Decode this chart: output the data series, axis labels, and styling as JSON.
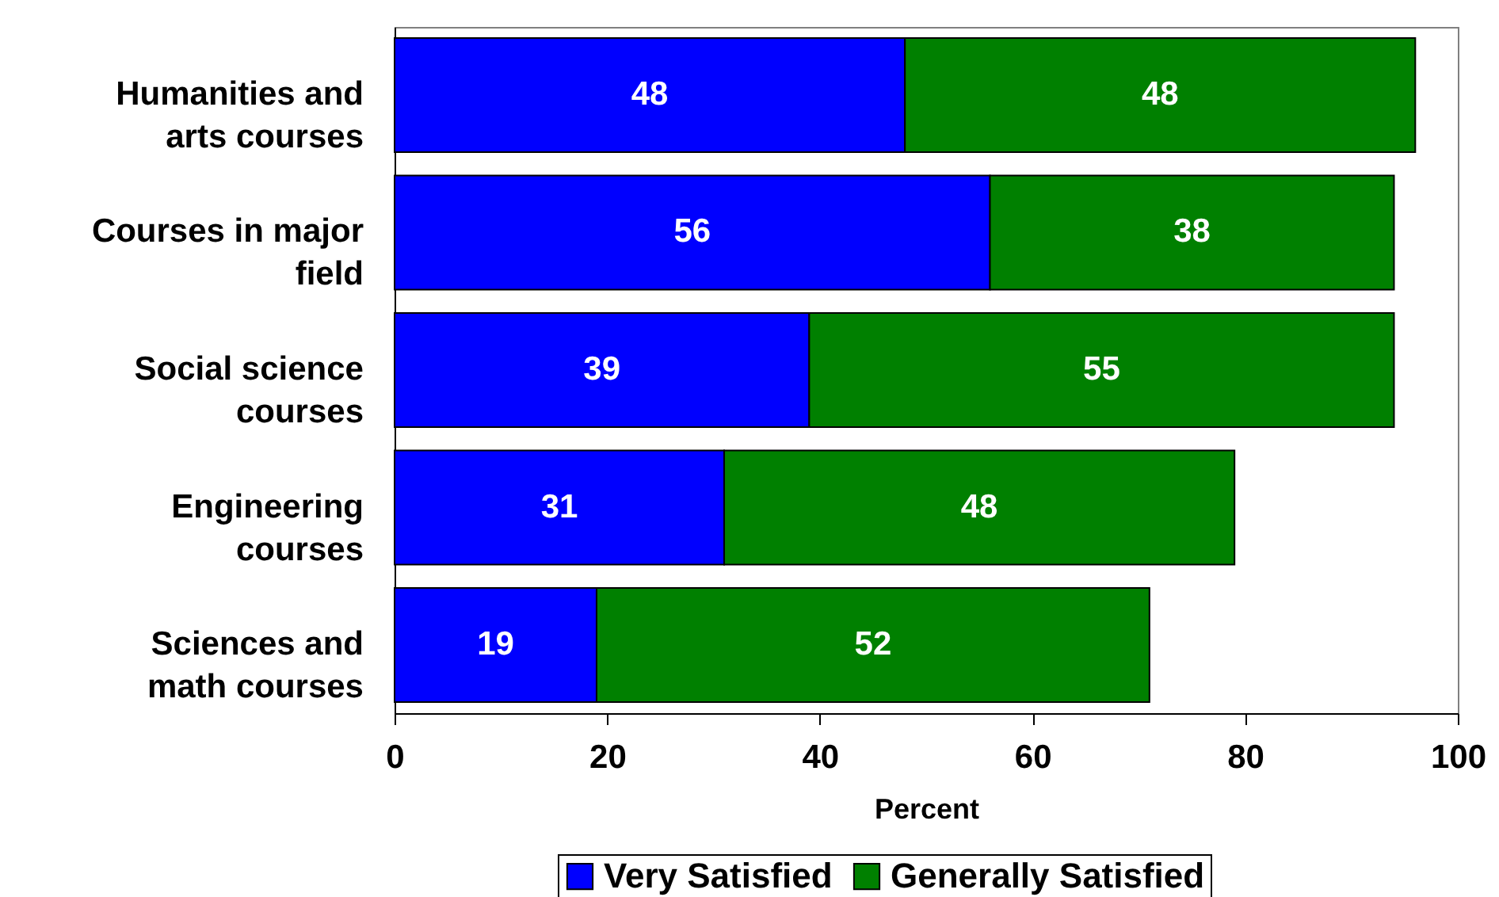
{
  "chart_data": {
    "type": "bar",
    "orientation": "horizontal",
    "stacked": true,
    "xlabel": "Percent",
    "categories": [
      "Humanities and arts courses",
      "Courses in major field",
      "Social science courses",
      "Engineering courses",
      "Sciences and math courses"
    ],
    "series": [
      {
        "name": "Very Satisfied",
        "color": "#0000ff",
        "values": [
          48,
          56,
          39,
          31,
          19
        ]
      },
      {
        "name": "Generally Satisfied",
        "color": "#008000",
        "values": [
          48,
          38,
          55,
          48,
          52
        ]
      }
    ],
    "xlim": [
      0,
      100
    ],
    "xticks": [
      0,
      20,
      40,
      60,
      80,
      100
    ],
    "data_labels": true,
    "legend": "bottom"
  }
}
